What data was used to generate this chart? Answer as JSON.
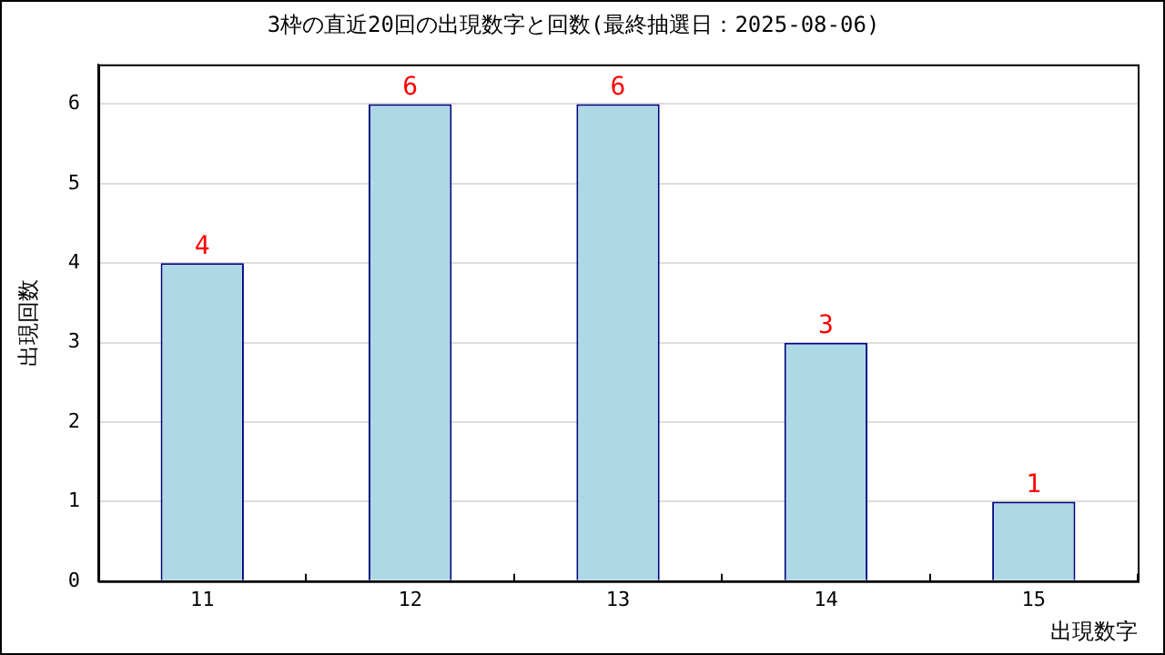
{
  "chart_data": {
    "type": "bar",
    "title": "3枠の直近20回の出現数字と回数(最終抽選日：2025-08-06)",
    "xlabel": "出現数字",
    "ylabel": "出現回数",
    "categories": [
      "11",
      "12",
      "13",
      "14",
      "15"
    ],
    "values": [
      4,
      6,
      6,
      3,
      1
    ],
    "color": "#add8e6",
    "ylim": [
      0,
      6.5
    ],
    "yticks": [
      0,
      1,
      2,
      3,
      4,
      5,
      6
    ],
    "grid": "y",
    "legend": false,
    "data_labels": true
  }
}
